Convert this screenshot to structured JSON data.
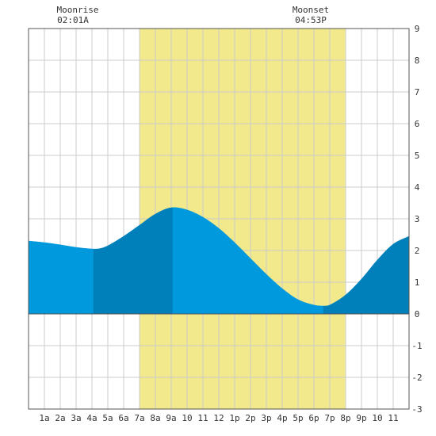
{
  "annotations": {
    "moonrise": {
      "label": "Moonrise",
      "time": "02:01A",
      "hour": 2.02
    },
    "moonset": {
      "label": "Moonset",
      "time": "04:53P",
      "hour": 16.88
    }
  },
  "chart_data": {
    "type": "area",
    "title": "",
    "xlabel": "",
    "ylabel": "",
    "xlim": [
      0,
      24
    ],
    "ylim": [
      -3,
      9
    ],
    "grid": true,
    "x_ticks": [
      {
        "x": 1,
        "label": "1a"
      },
      {
        "x": 2,
        "label": "2a"
      },
      {
        "x": 3,
        "label": "3a"
      },
      {
        "x": 4,
        "label": "4a"
      },
      {
        "x": 5,
        "label": "5a"
      },
      {
        "x": 6,
        "label": "6a"
      },
      {
        "x": 7,
        "label": "7a"
      },
      {
        "x": 8,
        "label": "8a"
      },
      {
        "x": 9,
        "label": "9a"
      },
      {
        "x": 10,
        "label": "10"
      },
      {
        "x": 11,
        "label": "11"
      },
      {
        "x": 12,
        "label": "12"
      },
      {
        "x": 13,
        "label": "1p"
      },
      {
        "x": 14,
        "label": "2p"
      },
      {
        "x": 15,
        "label": "3p"
      },
      {
        "x": 16,
        "label": "4p"
      },
      {
        "x": 17,
        "label": "5p"
      },
      {
        "x": 18,
        "label": "6p"
      },
      {
        "x": 19,
        "label": "7p"
      },
      {
        "x": 20,
        "label": "8p"
      },
      {
        "x": 21,
        "label": "9p"
      },
      {
        "x": 22,
        "label": "10"
      },
      {
        "x": 23,
        "label": "11"
      }
    ],
    "y_ticks": [
      {
        "y": 9,
        "label": "9"
      },
      {
        "y": 8,
        "label": "8"
      },
      {
        "y": 7,
        "label": "7"
      },
      {
        "y": 6,
        "label": "6"
      },
      {
        "y": 5,
        "label": "5"
      },
      {
        "y": 4,
        "label": "4"
      },
      {
        "y": 3,
        "label": "3"
      },
      {
        "y": 2,
        "label": "2"
      },
      {
        "y": 1,
        "label": "1"
      },
      {
        "y": 0,
        "label": "0"
      },
      {
        "y": -1,
        "label": "-1"
      },
      {
        "y": -2,
        "label": "-2"
      },
      {
        "y": -3,
        "label": "-3"
      }
    ],
    "daylight": {
      "start": 7,
      "end": 20,
      "color": "#f2e98c"
    },
    "tide_extremes": [
      {
        "x": 0,
        "y": 2.3
      },
      {
        "x": 4.1,
        "y": 2.05
      },
      {
        "x": 9.1,
        "y": 3.35
      },
      {
        "x": 18.6,
        "y": 0.25
      },
      {
        "x": 24,
        "y": 2.45
      }
    ],
    "series": [
      {
        "values": [
          {
            "x": 0,
            "y": 2.3
          },
          {
            "x": 1,
            "y": 2.25
          },
          {
            "x": 2,
            "y": 2.18
          },
          {
            "x": 3,
            "y": 2.1
          },
          {
            "x": 4,
            "y": 2.05
          },
          {
            "x": 4.5,
            "y": 2.06
          },
          {
            "x": 5,
            "y": 2.15
          },
          {
            "x": 6,
            "y": 2.45
          },
          {
            "x": 7,
            "y": 2.8
          },
          {
            "x": 8,
            "y": 3.15
          },
          {
            "x": 9,
            "y": 3.35
          },
          {
            "x": 10,
            "y": 3.28
          },
          {
            "x": 11,
            "y": 3.05
          },
          {
            "x": 12,
            "y": 2.7
          },
          {
            "x": 13,
            "y": 2.25
          },
          {
            "x": 14,
            "y": 1.75
          },
          {
            "x": 15,
            "y": 1.25
          },
          {
            "x": 16,
            "y": 0.8
          },
          {
            "x": 17,
            "y": 0.45
          },
          {
            "x": 18,
            "y": 0.28
          },
          {
            "x": 18.6,
            "y": 0.25
          },
          {
            "x": 19,
            "y": 0.28
          },
          {
            "x": 20,
            "y": 0.6
          },
          {
            "x": 21,
            "y": 1.1
          },
          {
            "x": 22,
            "y": 1.7
          },
          {
            "x": 23,
            "y": 2.2
          },
          {
            "x": 24,
            "y": 2.45
          }
        ]
      }
    ],
    "shading": [
      {
        "start": 0,
        "end": 4.1,
        "color": "#0099dd"
      },
      {
        "start": 4.1,
        "end": 9.1,
        "color": "#0080bb"
      },
      {
        "start": 9.1,
        "end": 18.6,
        "color": "#0099dd"
      },
      {
        "start": 18.6,
        "end": 24,
        "color": "#0080bb"
      }
    ],
    "colors": {
      "grid": "#cccccc",
      "border": "#555555",
      "zero_line": "#555555",
      "background": "#ffffff"
    }
  }
}
